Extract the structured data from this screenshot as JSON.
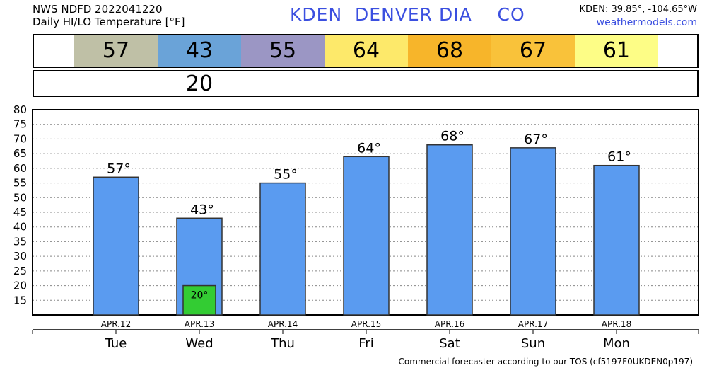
{
  "header": {
    "line1": "NWS NDFD 2022041220",
    "line2": "Daily HI/LO Temperature [°F]",
    "station": "KDEN  DENVER DIA    CO",
    "coords": "KDEN: 39.85°, -104.65°W",
    "site": "weathermodels.com"
  },
  "hi_strip": [
    {
      "value": "57",
      "color": "#bfc0a6"
    },
    {
      "value": "43",
      "color": "#6aa3d8"
    },
    {
      "value": "55",
      "color": "#9b96c4"
    },
    {
      "value": "64",
      "color": "#fde96a"
    },
    {
      "value": "68",
      "color": "#f7b52a"
    },
    {
      "value": "67",
      "color": "#f9c23a"
    },
    {
      "value": "61",
      "color": "#fdfd86"
    }
  ],
  "lo_strip": [
    {
      "day_index": 1,
      "value": "20"
    }
  ],
  "chart_data": {
    "type": "bar",
    "categories": [
      "APR.12",
      "APR.13",
      "APR.14",
      "APR.15",
      "APR.16",
      "APR.17",
      "APR.18"
    ],
    "days": [
      "Tue",
      "Wed",
      "Thu",
      "Fri",
      "Sat",
      "Sun",
      "Mon"
    ],
    "series": [
      {
        "values": [
          57,
          43,
          55,
          64,
          68,
          67,
          61
        ],
        "color": "#5a9bf0"
      },
      {
        "values": [
          null,
          20,
          null,
          null,
          null,
          null,
          null
        ],
        "color": "#33cc33"
      }
    ],
    "hi_labels": [
      "57°",
      "43°",
      "55°",
      "64°",
      "68°",
      "67°",
      "61°"
    ],
    "lo_labels": [
      "",
      "20°",
      "",
      "",
      "",
      "",
      ""
    ],
    "yticks": [
      15,
      20,
      25,
      30,
      35,
      40,
      45,
      50,
      55,
      60,
      65,
      70,
      75,
      80
    ],
    "ylim": [
      10,
      80
    ],
    "grid": true
  },
  "footer": "Commercial forecaster according to our TOS (cf5197F0UKDEN0p197)"
}
